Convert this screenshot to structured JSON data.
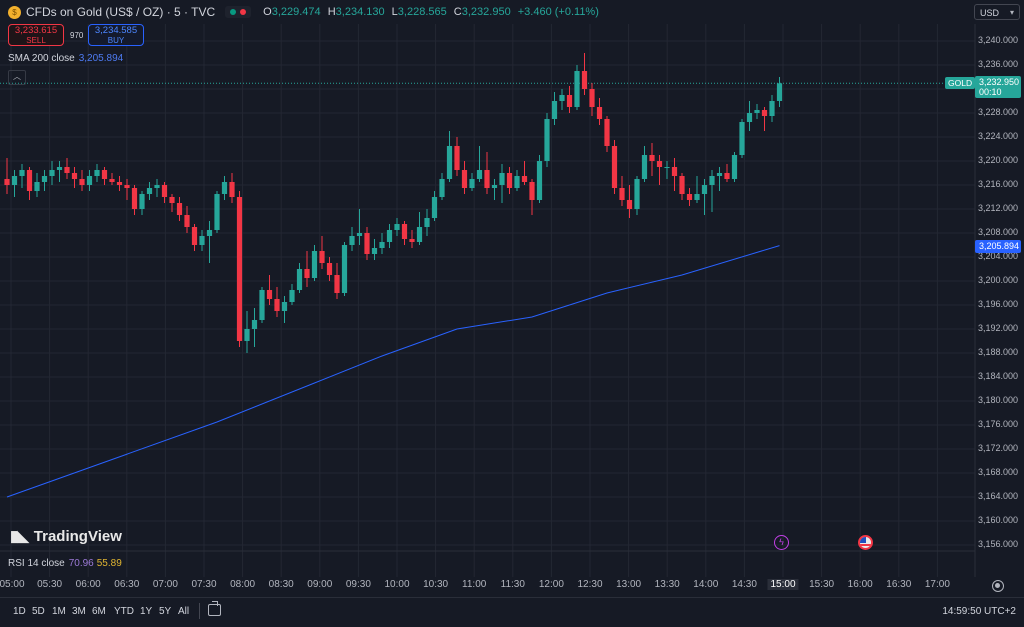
{
  "header": {
    "symbol_title": "CFDs on Gold (US$ / OZ) · 5 · TVC",
    "ohlc": [
      {
        "key": "O",
        "value": "3,229.474"
      },
      {
        "key": "H",
        "value": "3,234.130"
      },
      {
        "key": "L",
        "value": "3,228.565"
      },
      {
        "key": "C",
        "value": "3,232.950"
      }
    ],
    "change": "+3.460 (+0.11%)",
    "status_colors": {
      "market_open": "#089981",
      "session": "#f23645"
    }
  },
  "trade": {
    "sell_price": "3,233.615",
    "sell_label": "SELL",
    "spread": "970",
    "buy_price": "3,234.585",
    "buy_label": "BUY"
  },
  "legend": {
    "sma_label": "SMA 200 close",
    "sma_value": "3,205.894",
    "rsi_label": "RSI 14 close",
    "rsi_value_1": "70.96",
    "rsi_value_2": "55.89"
  },
  "currency_selector": {
    "value": "USD"
  },
  "price_axis": {
    "labels": [
      "3,240.000",
      "3,236.000",
      "3,232.000",
      "3,228.000",
      "3,224.000",
      "3,220.000",
      "3,216.000",
      "3,212.000",
      "3,208.000",
      "3,204.000",
      "3,200.000",
      "3,196.000",
      "3,192.000",
      "3,188.000",
      "3,184.000",
      "3,180.000",
      "3,176.000",
      "3,172.000",
      "3,168.000",
      "3,164.000",
      "3,160.000",
      "3,156.000"
    ]
  },
  "tags": {
    "symbol": "GOLD",
    "last_price": "3,232.950",
    "countdown": "00:10",
    "sma_price": "3,205.894"
  },
  "branding": {
    "logo_text": "TradingView"
  },
  "time_axis": {
    "labels": [
      "05:00",
      "05:30",
      "06:00",
      "06:30",
      "07:00",
      "07:30",
      "08:00",
      "08:30",
      "09:00",
      "09:30",
      "10:00",
      "10:30",
      "11:00",
      "11:30",
      "12:00",
      "12:30",
      "13:00",
      "13:30",
      "14:00",
      "14:30",
      "15:00",
      "15:30",
      "16:00",
      "16:30",
      "17:00"
    ],
    "highlight": "15:00"
  },
  "bottom_bar": {
    "ranges": [
      "1D",
      "5D",
      "1M",
      "3M",
      "6M",
      "YTD",
      "1Y",
      "5Y",
      "All"
    ],
    "clock": "14:59:50 UTC+2"
  },
  "colors": {
    "up": "#26a69a",
    "down": "#f23645",
    "sma": "#2962ff",
    "background": "#161a25",
    "grid": "#232733"
  },
  "chart_data": {
    "type": "candlestick",
    "ylim": [
      3155,
      3242
    ],
    "candles": [
      [
        3217.0,
        3220.5,
        3214.5,
        3216.0
      ],
      [
        3216.0,
        3218.5,
        3214.0,
        3217.5
      ],
      [
        3217.5,
        3219.5,
        3215.5,
        3218.5
      ],
      [
        3218.5,
        3219.0,
        3213.5,
        3215.0
      ],
      [
        3215.0,
        3218.0,
        3214.0,
        3216.5
      ],
      [
        3216.5,
        3218.5,
        3215.0,
        3217.5
      ],
      [
        3217.5,
        3220.0,
        3216.0,
        3218.5
      ],
      [
        3218.5,
        3220.0,
        3216.5,
        3219.0
      ],
      [
        3219.0,
        3220.5,
        3217.0,
        3218.0
      ],
      [
        3218.0,
        3219.0,
        3215.5,
        3217.0
      ],
      [
        3217.0,
        3218.5,
        3215.0,
        3216.0
      ],
      [
        3216.0,
        3218.5,
        3215.0,
        3217.5
      ],
      [
        3217.5,
        3219.5,
        3216.5,
        3218.5
      ],
      [
        3218.5,
        3219.0,
        3216.0,
        3217.0
      ],
      [
        3217.0,
        3218.0,
        3216.0,
        3216.5
      ],
      [
        3216.5,
        3217.5,
        3215.0,
        3216.0
      ],
      [
        3216.0,
        3217.0,
        3213.5,
        3215.5
      ],
      [
        3215.5,
        3216.0,
        3211.0,
        3212.0
      ],
      [
        3212.0,
        3215.0,
        3211.0,
        3214.5
      ],
      [
        3214.5,
        3216.5,
        3213.5,
        3215.5
      ],
      [
        3215.5,
        3217.0,
        3214.0,
        3216.0
      ],
      [
        3216.0,
        3216.5,
        3213.0,
        3214.0
      ],
      [
        3214.0,
        3214.5,
        3211.5,
        3213.0
      ],
      [
        3213.0,
        3214.0,
        3210.0,
        3211.0
      ],
      [
        3211.0,
        3212.5,
        3208.0,
        3209.0
      ],
      [
        3209.0,
        3209.5,
        3205.0,
        3206.0
      ],
      [
        3206.0,
        3208.5,
        3205.0,
        3207.5
      ],
      [
        3207.5,
        3210.0,
        3203.0,
        3208.5
      ],
      [
        3208.5,
        3215.0,
        3208.0,
        3214.5
      ],
      [
        3214.5,
        3217.5,
        3213.5,
        3216.5
      ],
      [
        3216.5,
        3218.0,
        3213.0,
        3214.0
      ],
      [
        3214.0,
        3215.0,
        3189.0,
        3190.0
      ],
      [
        3190.0,
        3195.0,
        3188.0,
        3192.0
      ],
      [
        3192.0,
        3195.5,
        3189.0,
        3193.5
      ],
      [
        3193.5,
        3199.0,
        3193.0,
        3198.5
      ],
      [
        3198.5,
        3201.0,
        3196.0,
        3197.0
      ],
      [
        3197.0,
        3199.0,
        3194.0,
        3195.0
      ],
      [
        3195.0,
        3197.5,
        3193.0,
        3196.5
      ],
      [
        3196.5,
        3199.5,
        3196.0,
        3198.5
      ],
      [
        3198.5,
        3203.0,
        3198.0,
        3202.0
      ],
      [
        3202.0,
        3205.0,
        3199.0,
        3200.5
      ],
      [
        3200.5,
        3206.0,
        3200.0,
        3205.0
      ],
      [
        3205.0,
        3207.5,
        3202.0,
        3203.0
      ],
      [
        3203.0,
        3204.0,
        3200.0,
        3201.0
      ],
      [
        3201.0,
        3203.0,
        3197.0,
        3198.0
      ],
      [
        3198.0,
        3206.5,
        3197.5,
        3206.0
      ],
      [
        3206.0,
        3209.0,
        3205.0,
        3207.5
      ],
      [
        3207.5,
        3212.0,
        3206.0,
        3208.0
      ],
      [
        3208.0,
        3209.0,
        3203.5,
        3204.5
      ],
      [
        3204.5,
        3207.0,
        3203.5,
        3205.5
      ],
      [
        3205.5,
        3208.0,
        3204.5,
        3206.5
      ],
      [
        3206.5,
        3209.5,
        3205.5,
        3208.5
      ],
      [
        3208.5,
        3210.5,
        3207.5,
        3209.5
      ],
      [
        3209.5,
        3210.0,
        3206.0,
        3207.0
      ],
      [
        3207.0,
        3208.5,
        3205.5,
        3206.5
      ],
      [
        3206.5,
        3211.5,
        3206.0,
        3209.0
      ],
      [
        3209.0,
        3212.0,
        3207.5,
        3210.5
      ],
      [
        3210.5,
        3215.0,
        3210.0,
        3214.0
      ],
      [
        3214.0,
        3218.0,
        3213.5,
        3217.0
      ],
      [
        3217.0,
        3225.0,
        3216.5,
        3222.5
      ],
      [
        3222.5,
        3224.0,
        3217.5,
        3218.5
      ],
      [
        3218.5,
        3220.0,
        3214.5,
        3215.5
      ],
      [
        3215.5,
        3218.0,
        3215.0,
        3217.0
      ],
      [
        3217.0,
        3222.5,
        3216.5,
        3218.5
      ],
      [
        3218.5,
        3221.5,
        3214.5,
        3215.5
      ],
      [
        3215.5,
        3217.0,
        3213.5,
        3216.0
      ],
      [
        3216.0,
        3219.5,
        3213.0,
        3218.0
      ],
      [
        3218.0,
        3219.0,
        3214.5,
        3215.5
      ],
      [
        3215.5,
        3218.5,
        3215.0,
        3217.5
      ],
      [
        3217.5,
        3220.0,
        3216.0,
        3216.5
      ],
      [
        3216.5,
        3217.0,
        3211.0,
        3213.5
      ],
      [
        3213.5,
        3221.0,
        3213.0,
        3220.0
      ],
      [
        3220.0,
        3228.0,
        3219.0,
        3227.0
      ],
      [
        3227.0,
        3231.5,
        3226.0,
        3230.0
      ],
      [
        3230.0,
        3232.0,
        3228.5,
        3231.0
      ],
      [
        3231.0,
        3232.5,
        3228.0,
        3229.0
      ],
      [
        3229.0,
        3236.0,
        3228.5,
        3235.0
      ],
      [
        3235.0,
        3238.0,
        3231.0,
        3232.0
      ],
      [
        3232.0,
        3233.0,
        3227.5,
        3229.0
      ],
      [
        3229.0,
        3230.5,
        3226.0,
        3227.0
      ],
      [
        3227.0,
        3227.5,
        3221.5,
        3222.5
      ],
      [
        3222.5,
        3223.5,
        3214.5,
        3215.5
      ],
      [
        3215.5,
        3217.5,
        3212.5,
        3213.5
      ],
      [
        3213.5,
        3216.0,
        3210.5,
        3212.0
      ],
      [
        3212.0,
        3217.5,
        3211.0,
        3217.0
      ],
      [
        3217.0,
        3222.5,
        3216.5,
        3221.0
      ],
      [
        3221.0,
        3223.0,
        3217.5,
        3220.0
      ],
      [
        3220.0,
        3221.0,
        3216.0,
        3219.0
      ],
      [
        3219.0,
        3220.0,
        3217.0,
        3219.0
      ],
      [
        3219.0,
        3220.5,
        3215.0,
        3217.5
      ],
      [
        3217.5,
        3218.0,
        3213.5,
        3214.5
      ],
      [
        3214.5,
        3215.5,
        3212.5,
        3213.5
      ],
      [
        3213.5,
        3217.5,
        3213.0,
        3214.5
      ],
      [
        3214.5,
        3217.0,
        3211.0,
        3216.0
      ],
      [
        3216.0,
        3218.5,
        3211.5,
        3217.5
      ],
      [
        3217.5,
        3219.0,
        3215.0,
        3218.0
      ],
      [
        3218.0,
        3219.5,
        3216.5,
        3217.0
      ],
      [
        3217.0,
        3221.5,
        3216.5,
        3221.0
      ],
      [
        3221.0,
        3227.0,
        3220.5,
        3226.5
      ],
      [
        3226.5,
        3230.0,
        3225.0,
        3228.0
      ],
      [
        3228.0,
        3229.5,
        3227.0,
        3228.5
      ],
      [
        3228.5,
        3229.0,
        3225.0,
        3227.5
      ],
      [
        3227.5,
        3231.0,
        3226.5,
        3230.0
      ],
      [
        3230.0,
        3234.0,
        3229.0,
        3232.95
      ]
    ],
    "sma_200": [
      [
        0,
        3164.0
      ],
      [
        28,
        3176.5
      ],
      [
        41,
        3183.0
      ],
      [
        50,
        3187.5
      ],
      [
        60,
        3192.0
      ],
      [
        70,
        3194.0
      ],
      [
        80,
        3198.0
      ],
      [
        90,
        3201.0
      ],
      [
        103,
        3205.9
      ]
    ]
  }
}
